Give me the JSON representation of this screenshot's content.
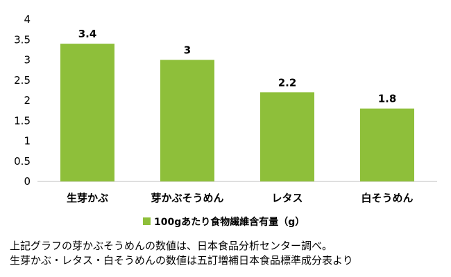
{
  "chart_data": {
    "type": "bar",
    "categories": [
      "生芽かぶ",
      "芽かぶそうめん",
      "レタス",
      "白そうめん"
    ],
    "series": [
      {
        "name": "100gあたり食物繊維含有量（g）",
        "values": [
          3.4,
          3,
          2.2,
          1.8
        ]
      }
    ],
    "data_labels": [
      "3.4",
      "3",
      "2.2",
      "1.8"
    ],
    "y_ticks": [
      "0",
      "0.5",
      "1",
      "1.5",
      "2",
      "2.5",
      "3",
      "3.5",
      "4"
    ],
    "ylim": [
      0,
      4
    ],
    "grid": false,
    "legend_position": "bottom",
    "bar_color": "#8ebf3a"
  },
  "caption": {
    "line1": "上記グラフの芽かぶそうめんの数値は、日本食品分析センター調べ。",
    "line2": "生芽かぶ・レタス・白そうめんの数値は五訂増補日本食品標準成分表より"
  }
}
